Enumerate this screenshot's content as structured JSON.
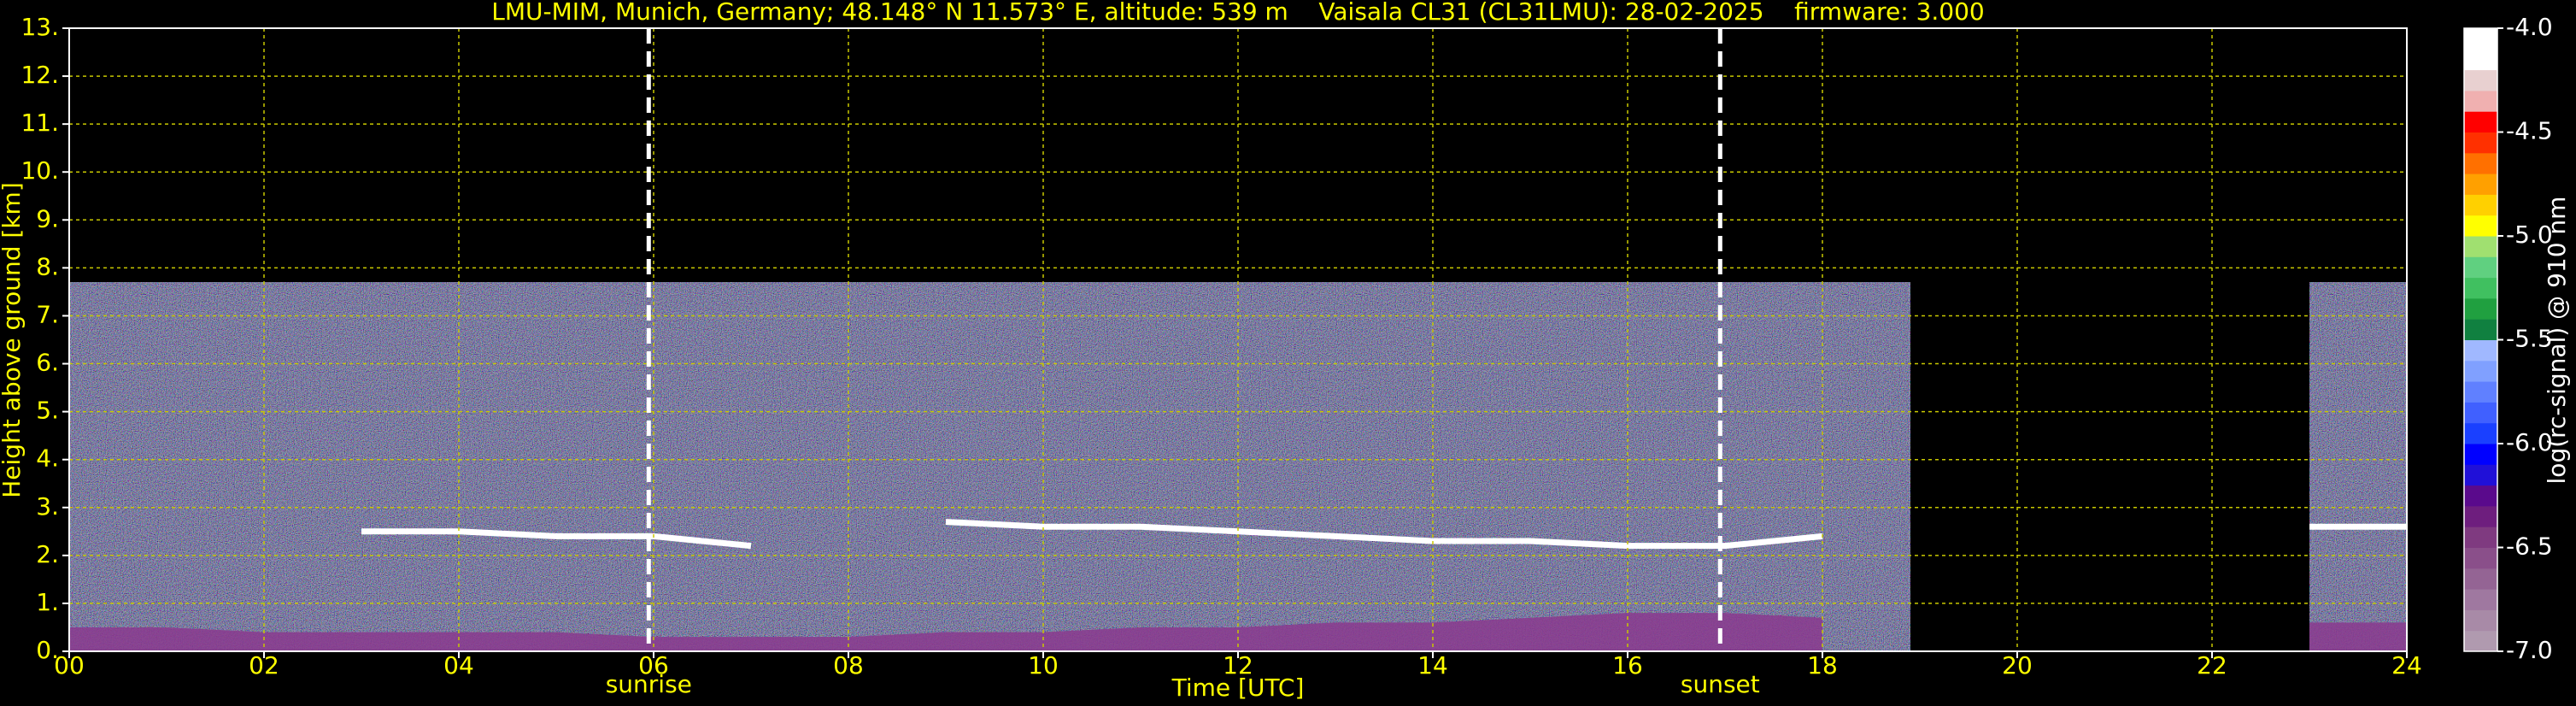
{
  "chart_data": {
    "type": "ceilometer",
    "title": "LMU-MIM, Munich, Germany; 48.148° N 11.573° E, altitude: 539 m    Vaisala CL31 (CL31LMU): 28-02-2025    firmware: 3.000",
    "x_label": "Time [UTC]",
    "y_label": "Height above ground [km]",
    "xlim": [
      0,
      24
    ],
    "xticks": [
      {
        "value": 0,
        "label": "00"
      },
      {
        "value": 2,
        "label": "02"
      },
      {
        "value": 4,
        "label": "04"
      },
      {
        "value": 6,
        "label": "06"
      },
      {
        "value": 8,
        "label": "08"
      },
      {
        "value": 10,
        "label": "10"
      },
      {
        "value": 12,
        "label": "12"
      },
      {
        "value": 14,
        "label": "14"
      },
      {
        "value": 16,
        "label": "16"
      },
      {
        "value": 18,
        "label": "18"
      },
      {
        "value": 20,
        "label": "20"
      },
      {
        "value": 22,
        "label": "22"
      },
      {
        "value": 24,
        "label": "24"
      }
    ],
    "ylim": [
      0,
      13
    ],
    "yticks": [
      {
        "value": 0,
        "label": "0."
      },
      {
        "value": 1,
        "label": "1."
      },
      {
        "value": 2,
        "label": "2."
      },
      {
        "value": 3,
        "label": "3."
      },
      {
        "value": 4,
        "label": "4."
      },
      {
        "value": 5,
        "label": "5."
      },
      {
        "value": 6,
        "label": "6."
      },
      {
        "value": 7,
        "label": "7."
      },
      {
        "value": 8,
        "label": "8."
      },
      {
        "value": 9,
        "label": "9."
      },
      {
        "value": 10,
        "label": "10."
      },
      {
        "value": 11,
        "label": "11."
      },
      {
        "value": 12,
        "label": "12."
      },
      {
        "value": 13,
        "label": "13."
      }
    ],
    "grid": true,
    "grid_color": "#c8c800",
    "text_color": "#ffff00",
    "coverage": [
      [
        0,
        18.9
      ],
      [
        23.0,
        24
      ]
    ],
    "coverage_top": 7.7,
    "events": [
      {
        "label": "sunrise",
        "value": 5.95
      },
      {
        "label": "sunset",
        "value": 16.95
      }
    ],
    "x": [
      0,
      1,
      2,
      3,
      4,
      5,
      6,
      7,
      8,
      9,
      10,
      11,
      12,
      13,
      14,
      15,
      16,
      17,
      18,
      19,
      20,
      21,
      22,
      23,
      24
    ],
    "series": [
      {
        "color": "#8a3a8e",
        "fill": true,
        "values": [
          0.5,
          0.5,
          0.4,
          0.4,
          0.4,
          0.4,
          0.3,
          0.3,
          0.3,
          0.4,
          0.4,
          0.5,
          0.5,
          0.6,
          0.6,
          0.7,
          0.8,
          0.8,
          0.7,
          null,
          null,
          null,
          null,
          0.6,
          0.6
        ]
      },
      {
        "color": "#ffffff",
        "fill": false,
        "values": [
          null,
          null,
          null,
          2.5,
          2.5,
          2.4,
          2.4,
          2.2,
          null,
          2.7,
          2.6,
          2.6,
          2.5,
          2.4,
          2.3,
          2.3,
          2.2,
          2.2,
          2.4,
          null,
          null,
          null,
          null,
          2.6,
          2.6
        ]
      }
    ],
    "colorbar": {
      "label": "log(rc-signal) @ 910 nm",
      "lim": [
        -7.0,
        -4.0
      ],
      "ticks": [
        {
          "value": -4.0,
          "label": "-4.0"
        },
        {
          "value": -4.5,
          "label": "-4.5"
        },
        {
          "value": -5.0,
          "label": "-5.0"
        },
        {
          "value": -5.5,
          "label": "-5.5"
        },
        {
          "value": -6.0,
          "label": "-6.0"
        },
        {
          "value": -6.5,
          "label": "-6.5"
        },
        {
          "value": -7.0,
          "label": "-7.0"
        }
      ],
      "colors": [
        "#b09aaf",
        "#a88aa7",
        "#9f78a0",
        "#946494",
        "#8a4f8a",
        "#7f3a80",
        "#6e1e7e",
        "#5a0a8c",
        "#2010d8",
        "#0000ff",
        "#1a40ff",
        "#4060ff",
        "#6080ff",
        "#80a0ff",
        "#a0b8ff",
        "#108040",
        "#20a040",
        "#40c060",
        "#60d080",
        "#a0e070",
        "#ffff00",
        "#ffd000",
        "#ffa000",
        "#ff7000",
        "#ff3000",
        "#ff0000",
        "#f0b0b0",
        "#e8d0d0",
        "#ffffff",
        "#ffffff"
      ]
    }
  }
}
